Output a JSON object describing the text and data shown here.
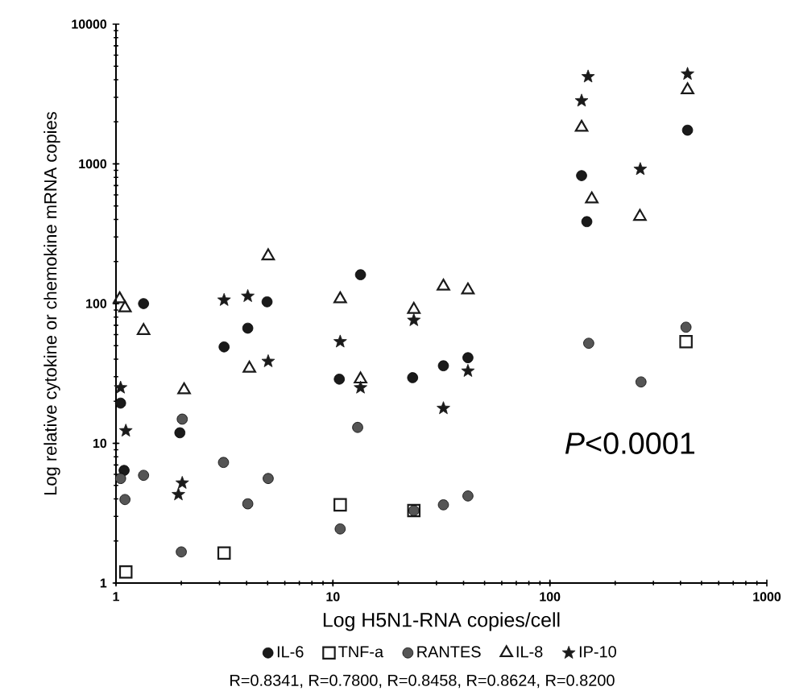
{
  "chart_data": {
    "type": "scatter",
    "xlabel": "Log  H5N1-RNA copies/cell",
    "ylabel": "Log  relative cytokine  or chemokine mRNA copies",
    "log": "xy",
    "xlim": [
      1,
      1000
    ],
    "ylim": [
      1,
      10000
    ],
    "xticks": [
      1,
      10,
      100,
      1000
    ],
    "yticks": [
      1,
      10,
      100,
      1000,
      10000
    ],
    "legend": "bottom",
    "annotations": [
      "*P*<0.0001",
      "R=0.8341,    R=0.7800, R=0.8458, R=0.8624, R=0.8200"
    ],
    "series": [
      {
        "name": "IL-6",
        "color": "#1a1a1a",
        "marker": "circle",
        "x": [
          1.05,
          1.34,
          1.09,
          1.97,
          3.15,
          4.05,
          4.97,
          13.4,
          10.7,
          23.3,
          32.3,
          41.9,
          140,
          148,
          431
        ],
        "values": [
          19.4,
          100,
          6.4,
          11.9,
          49,
          66.7,
          103,
          161,
          28.8,
          29.5,
          35.9,
          41,
          824,
          386,
          1742
        ]
      },
      {
        "name": "TNF-a",
        "color": "#1a1a1a",
        "marker": "square",
        "x": [
          1.11,
          3.15,
          10.8,
          23.6,
          424
        ],
        "values": [
          1.2,
          1.64,
          3.63,
          3.3,
          53.4
        ]
      },
      {
        "name": "RANTES",
        "color": "#555555",
        "marker": "circle",
        "x": [
          1.05,
          1.1,
          1.34,
          2.02,
          2.0,
          3.13,
          4.05,
          5.03,
          13.0,
          10.8,
          23.6,
          32.3,
          41.9,
          151,
          263,
          424
        ],
        "values": [
          5.6,
          3.96,
          5.9,
          14.9,
          1.67,
          7.3,
          3.69,
          5.6,
          13.0,
          2.44,
          3.3,
          3.63,
          4.2,
          52,
          27.5,
          67.8
        ]
      },
      {
        "name": "IL-8",
        "color": "#1a1a1a",
        "marker": "triangle",
        "x": [
          1.04,
          1.1,
          1.34,
          2.06,
          5.03,
          4.12,
          10.8,
          13.4,
          23.6,
          32.3,
          41.9,
          140,
          156,
          260,
          431
        ],
        "values": [
          108,
          93,
          64,
          24.1,
          219,
          34.4,
          108,
          28.8,
          90.7,
          133,
          125,
          1823,
          560,
          420,
          3380
        ]
      },
      {
        "name": "IP-10",
        "color": "#1a1a1a",
        "marker": "star",
        "x": [
          1.05,
          1.11,
          2.02,
          1.94,
          3.15,
          4.05,
          5.03,
          10.8,
          13.4,
          23.6,
          32.3,
          41.9,
          150,
          140,
          261,
          431
        ],
        "values": [
          25,
          12.3,
          5.2,
          4.3,
          106,
          113,
          38.6,
          53.4,
          25,
          76,
          17.8,
          32.9,
          4210,
          2830,
          916,
          4400
        ]
      }
    ]
  }
}
